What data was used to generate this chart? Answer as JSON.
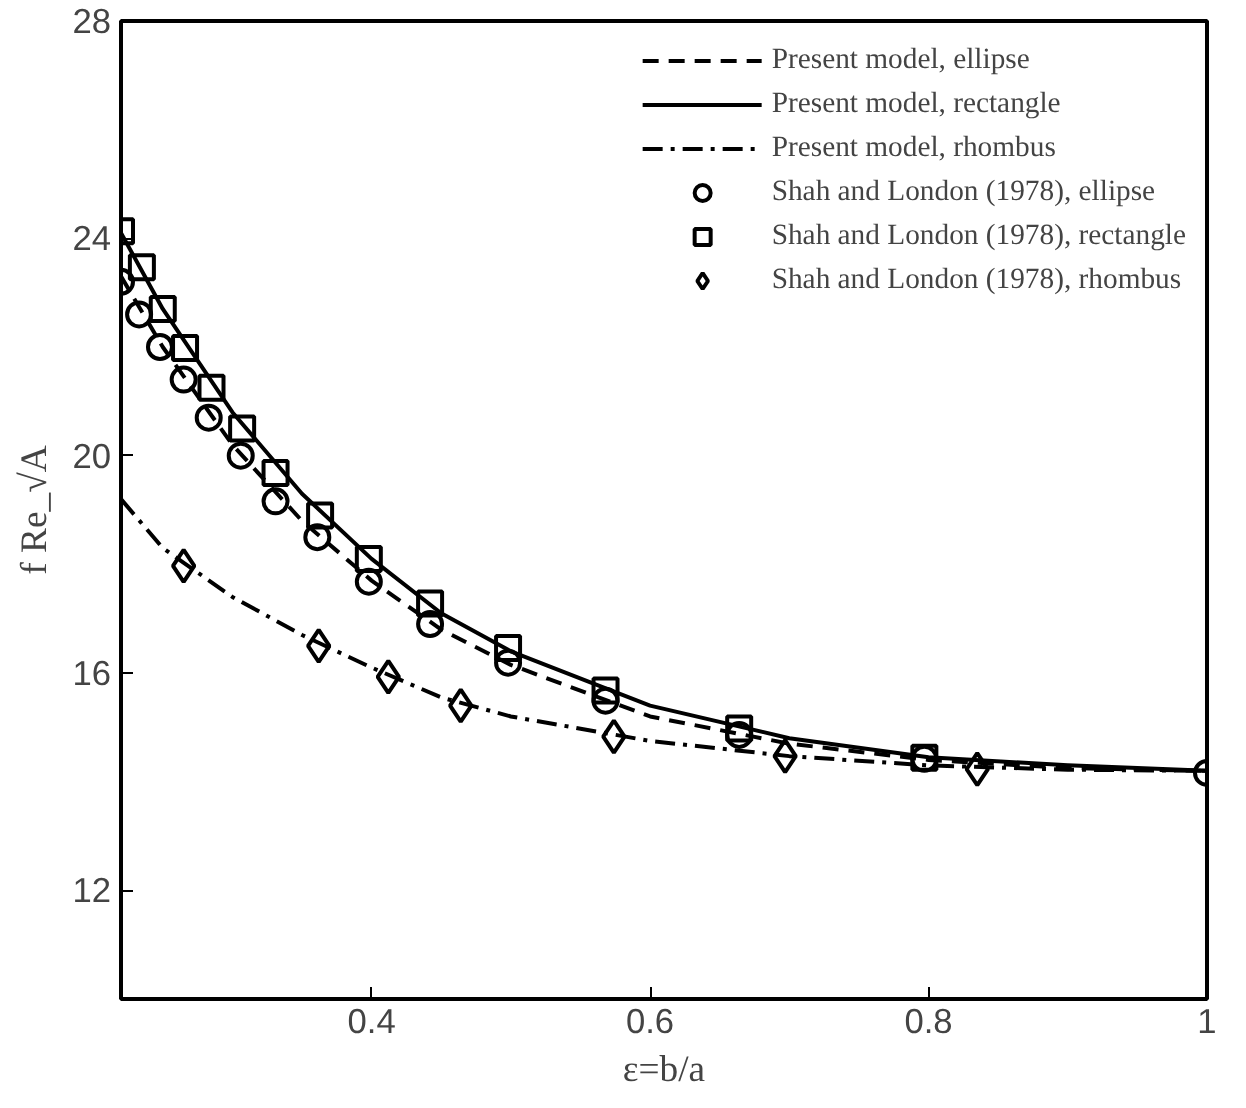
{
  "chart_data": {
    "type": "line",
    "xlabel": "ε=b/a",
    "ylabel": "f Re_√A",
    "xlim": [
      0.22,
      1
    ],
    "ylim": [
      10,
      28
    ],
    "xticks": [
      0.4,
      0.6,
      0.8,
      1
    ],
    "yticks": [
      12,
      16,
      20,
      24,
      28
    ],
    "grid": false,
    "legend": "top right",
    "series": [
      {
        "name": "Present model, ellipse",
        "line_style": "dashed",
        "marker": "none",
        "color": "#000000",
        "x": [
          0.22,
          0.25,
          0.3,
          0.35,
          0.4,
          0.45,
          0.5,
          0.6,
          0.7,
          0.8,
          0.9,
          1.0
        ],
        "values": [
          23.3,
          22.0,
          20.2,
          18.8,
          17.7,
          16.8,
          16.15,
          15.2,
          14.7,
          14.4,
          14.25,
          14.2
        ]
      },
      {
        "name": "Present model, rectangle",
        "line_style": "solid",
        "marker": "none",
        "color": "#000000",
        "x": [
          0.22,
          0.25,
          0.3,
          0.35,
          0.4,
          0.45,
          0.5,
          0.6,
          0.7,
          0.8,
          0.9,
          1.0
        ],
        "values": [
          24.1,
          22.7,
          20.8,
          19.3,
          18.1,
          17.1,
          16.4,
          15.4,
          14.8,
          14.45,
          14.3,
          14.2
        ]
      },
      {
        "name": "Present model, rhombus",
        "line_style": "dashdot",
        "marker": "none",
        "color": "#000000",
        "x": [
          0.22,
          0.25,
          0.3,
          0.35,
          0.4,
          0.45,
          0.5,
          0.6,
          0.7,
          0.8,
          0.9,
          1.0
        ],
        "values": [
          19.2,
          18.3,
          17.4,
          16.7,
          16.1,
          15.55,
          15.2,
          14.75,
          14.47,
          14.3,
          14.22,
          14.2
        ]
      },
      {
        "name": "Shah and London (1978), ellipse",
        "type": "scatter",
        "marker": "circle",
        "color": "#000000",
        "x": [
          0.22,
          0.233,
          0.248,
          0.265,
          0.283,
          0.306,
          0.331,
          0.361,
          0.398,
          0.442,
          0.498,
          0.568,
          0.664,
          0.797,
          1.0
        ],
        "values": [
          23.2,
          22.6,
          22.0,
          21.4,
          20.7,
          20.0,
          19.16,
          18.5,
          17.68,
          16.9,
          16.19,
          15.49,
          14.86,
          14.42,
          14.16
        ]
      },
      {
        "name": "Shah and London (1978), rectangle",
        "type": "scatter",
        "marker": "square",
        "color": "#000000",
        "x": [
          0.22,
          0.235,
          0.25,
          0.266,
          0.285,
          0.307,
          0.331,
          0.363,
          0.398,
          0.442,
          0.498,
          0.568,
          0.664,
          0.797
        ],
        "values": [
          24.13,
          23.47,
          22.7,
          21.98,
          21.25,
          20.5,
          19.68,
          18.9,
          18.1,
          17.28,
          16.46,
          15.68,
          14.98,
          14.44
        ]
      },
      {
        "name": "Shah and London (1978), rhombus",
        "type": "scatter",
        "marker": "diamond",
        "color": "#000000",
        "x": [
          0.265,
          0.362,
          0.412,
          0.464,
          0.574,
          0.697,
          0.835
        ],
        "values": [
          17.97,
          16.5,
          15.93,
          15.4,
          14.83,
          14.47,
          14.23
        ]
      }
    ]
  }
}
